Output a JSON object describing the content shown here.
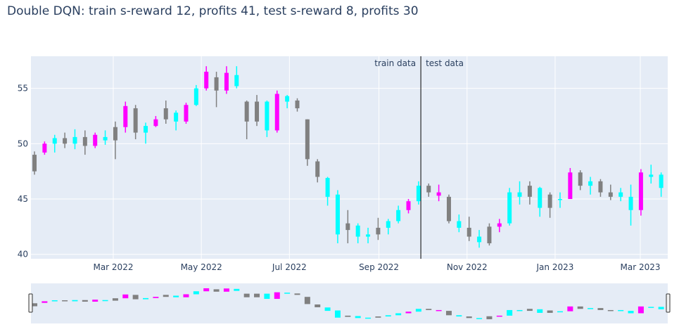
{
  "title": "Double DQN: train s-reward 12, profits 41, test s-reward 8, profits 30",
  "colors": {
    "plot_bg": "#e5ecf6",
    "hold": "#808080",
    "buy": "#00ffff",
    "sell": "#ff00ff",
    "split_line": "#000000"
  },
  "annotations": {
    "train_label": "train data",
    "test_label": "test data",
    "split_date": "2022-09-30"
  },
  "chart_data": {
    "type": "candlestick",
    "title": "Double DQN: train s-reward 12, profits 41, test s-reward 8, profits 30",
    "xlabel": "",
    "ylabel": "",
    "xlim": [
      "2022-01-03",
      "2023-03-20"
    ],
    "ylim": [
      39.6,
      57.9
    ],
    "grid": true,
    "range_slider": true,
    "y_ticks": [
      "40",
      "45",
      "50",
      "55"
    ],
    "x_ticks": [
      {
        "date": "2022-03-01",
        "label": "Mar 2022"
      },
      {
        "date": "2022-05-01",
        "label": "May 2022"
      },
      {
        "date": "2022-07-01",
        "label": "Jul 2022"
      },
      {
        "date": "2022-09-01",
        "label": "Sep 2022"
      },
      {
        "date": "2022-11-01",
        "label": "Nov 2022"
      },
      {
        "date": "2023-01-01",
        "label": "Jan 2023"
      },
      {
        "date": "2023-03-01",
        "label": "Mar 2023"
      }
    ],
    "columns": [
      "date",
      "open",
      "high",
      "low",
      "close",
      "color"
    ],
    "candles": [
      [
        "2022-01-03",
        47.5,
        49.3,
        47.2,
        49.0,
        "hold"
      ],
      [
        "2022-01-10",
        49.2,
        50.2,
        49.0,
        50.0,
        "sell"
      ],
      [
        "2022-01-17",
        50.0,
        50.8,
        49.2,
        50.5,
        "buy"
      ],
      [
        "2022-01-24",
        50.5,
        51.0,
        49.6,
        50.0,
        "hold"
      ],
      [
        "2022-01-31",
        50.0,
        51.3,
        49.5,
        50.6,
        "buy"
      ],
      [
        "2022-02-07",
        50.6,
        51.2,
        49.0,
        49.8,
        "hold"
      ],
      [
        "2022-02-14",
        49.8,
        51.0,
        49.6,
        50.8,
        "sell"
      ],
      [
        "2022-02-21",
        50.6,
        51.2,
        49.9,
        50.3,
        "buy"
      ],
      [
        "2022-02-28",
        50.3,
        52.0,
        48.6,
        51.5,
        "hold"
      ],
      [
        "2022-03-07",
        51.5,
        53.8,
        51.0,
        53.4,
        "sell"
      ],
      [
        "2022-03-14",
        53.2,
        53.5,
        50.4,
        51.0,
        "hold"
      ],
      [
        "2022-03-21",
        51.0,
        51.9,
        50.0,
        51.6,
        "buy"
      ],
      [
        "2022-03-28",
        51.6,
        52.5,
        51.5,
        52.2,
        "sell"
      ],
      [
        "2022-04-04",
        52.2,
        53.9,
        51.8,
        53.2,
        "hold"
      ],
      [
        "2022-04-11",
        52.8,
        53.0,
        51.2,
        52.0,
        "buy"
      ],
      [
        "2022-04-18",
        52.0,
        53.7,
        51.8,
        53.5,
        "sell"
      ],
      [
        "2022-04-25",
        53.5,
        55.3,
        53.4,
        55.0,
        "buy"
      ],
      [
        "2022-05-02",
        55.0,
        57.0,
        54.8,
        56.5,
        "sell"
      ],
      [
        "2022-05-09",
        56.0,
        56.5,
        53.3,
        54.8,
        "hold"
      ],
      [
        "2022-05-16",
        54.8,
        57.0,
        54.5,
        56.4,
        "sell"
      ],
      [
        "2022-05-23",
        56.2,
        57.0,
        55.0,
        55.2,
        "buy"
      ],
      [
        "2022-05-30",
        53.8,
        53.9,
        50.4,
        52.0,
        "hold"
      ],
      [
        "2022-06-06",
        52.0,
        54.4,
        51.6,
        53.8,
        "hold"
      ],
      [
        "2022-06-13",
        53.8,
        53.9,
        50.6,
        51.2,
        "buy"
      ],
      [
        "2022-06-20",
        51.2,
        54.8,
        51.0,
        54.5,
        "sell"
      ],
      [
        "2022-06-27",
        54.3,
        54.4,
        53.2,
        53.8,
        "buy"
      ],
      [
        "2022-07-04",
        53.9,
        54.1,
        52.9,
        53.2,
        "hold"
      ],
      [
        "2022-07-11",
        52.2,
        52.2,
        48.0,
        48.6,
        "hold"
      ],
      [
        "2022-07-18",
        48.4,
        48.6,
        46.5,
        47.0,
        "hold"
      ],
      [
        "2022-07-25",
        46.9,
        47.0,
        44.4,
        45.2,
        "buy"
      ],
      [
        "2022-08-01",
        45.4,
        45.8,
        41.0,
        41.8,
        "buy"
      ],
      [
        "2022-08-08",
        42.2,
        44.0,
        41.0,
        42.8,
        "hold"
      ],
      [
        "2022-08-15",
        42.6,
        42.8,
        41.0,
        41.6,
        "buy"
      ],
      [
        "2022-08-22",
        41.6,
        42.4,
        41.0,
        41.8,
        "buy"
      ],
      [
        "2022-08-29",
        41.8,
        43.3,
        41.3,
        42.4,
        "hold"
      ],
      [
        "2022-09-05",
        42.4,
        43.2,
        41.8,
        43.0,
        "buy"
      ],
      [
        "2022-09-12",
        43.0,
        44.4,
        42.8,
        44.0,
        "buy"
      ],
      [
        "2022-09-19",
        44.0,
        45.0,
        43.7,
        44.8,
        "sell"
      ],
      [
        "2022-09-26",
        44.8,
        46.6,
        44.5,
        46.2,
        "buy"
      ],
      [
        "2022-10-03",
        46.2,
        46.4,
        45.2,
        45.6,
        "hold"
      ],
      [
        "2022-10-10",
        45.6,
        46.3,
        44.8,
        45.3,
        "sell"
      ],
      [
        "2022-10-17",
        45.2,
        45.4,
        42.8,
        43.0,
        "hold"
      ],
      [
        "2022-10-24",
        43.0,
        43.6,
        42.0,
        42.4,
        "buy"
      ],
      [
        "2022-10-31",
        42.4,
        43.4,
        41.2,
        41.6,
        "hold"
      ],
      [
        "2022-11-07",
        41.6,
        42.2,
        40.6,
        41.1,
        "buy"
      ],
      [
        "2022-11-14",
        41.0,
        42.8,
        40.8,
        42.5,
        "hold"
      ],
      [
        "2022-11-21",
        42.5,
        43.2,
        42.0,
        42.8,
        "sell"
      ],
      [
        "2022-11-28",
        42.8,
        46.0,
        42.6,
        45.6,
        "buy"
      ],
      [
        "2022-12-05",
        45.6,
        46.6,
        44.5,
        45.2,
        "buy"
      ],
      [
        "2022-12-12",
        45.2,
        46.6,
        44.5,
        46.2,
        "hold"
      ],
      [
        "2022-12-19",
        46.0,
        46.1,
        43.4,
        44.2,
        "buy"
      ],
      [
        "2022-12-26",
        44.2,
        45.6,
        43.3,
        45.4,
        "hold"
      ],
      [
        "2023-01-02",
        45.0,
        45.6,
        44.2,
        45.0,
        "buy"
      ],
      [
        "2023-01-09",
        45.0,
        47.8,
        45.0,
        47.4,
        "sell"
      ],
      [
        "2023-01-16",
        47.4,
        47.6,
        45.8,
        46.2,
        "hold"
      ],
      [
        "2023-01-23",
        46.2,
        47.0,
        45.4,
        46.6,
        "buy"
      ],
      [
        "2023-01-30",
        46.6,
        46.8,
        45.2,
        45.6,
        "hold"
      ],
      [
        "2023-02-06",
        45.6,
        46.3,
        44.9,
        45.2,
        "hold"
      ],
      [
        "2023-02-13",
        45.2,
        46.0,
        44.8,
        45.6,
        "buy"
      ],
      [
        "2023-02-20",
        45.2,
        46.3,
        42.6,
        44.0,
        "buy"
      ],
      [
        "2023-02-27",
        44.0,
        47.7,
        43.5,
        47.4,
        "sell"
      ],
      [
        "2023-03-06",
        47.0,
        48.1,
        46.4,
        47.2,
        "buy"
      ],
      [
        "2023-03-13",
        47.2,
        47.4,
        45.2,
        46.0,
        "buy"
      ]
    ]
  }
}
